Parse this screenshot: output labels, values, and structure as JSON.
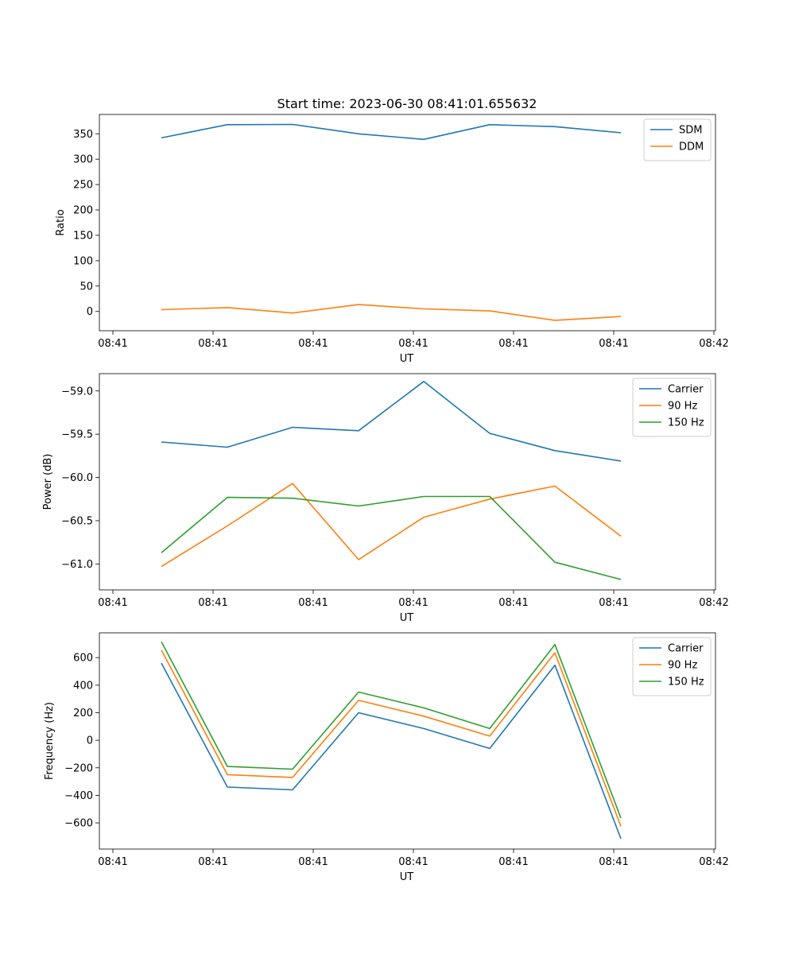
{
  "title": "Start time: 2023-06-30 08:41:01.655632",
  "chart_data": [
    {
      "type": "line",
      "title": "Start time: 2023-06-30 08:41:01.655632",
      "xlabel": "UT",
      "ylabel": "Ratio",
      "x_tick_labels": [
        "08:41",
        "08:41",
        "08:41",
        "08:41",
        "08:41",
        "08:41",
        "08:42"
      ],
      "yticks": [
        0,
        50,
        100,
        150,
        200,
        250,
        300,
        350
      ],
      "ylim": [
        -38,
        388
      ],
      "grid": false,
      "legend_position": "top-right",
      "series": [
        {
          "name": "SDM",
          "color": "#1f77b4",
          "values": [
            342,
            368,
            368.5,
            350,
            339,
            368,
            364,
            352
          ]
        },
        {
          "name": "DDM",
          "color": "#ff7f0e",
          "values": [
            3.5,
            7.5,
            -3,
            13.5,
            5,
            1,
            -17.5,
            -10
          ]
        }
      ]
    },
    {
      "type": "line",
      "title": "",
      "xlabel": "UT",
      "ylabel": "Power (dB)",
      "x_tick_labels": [
        "08:41",
        "08:41",
        "08:41",
        "08:41",
        "08:41",
        "08:41",
        "08:42"
      ],
      "yticks": [
        -61.0,
        -60.5,
        -60.0,
        -59.5,
        -59.0
      ],
      "ytick_labels": [
        "−61.0",
        "−60.5",
        "−60.0",
        "−59.5",
        "−59.0"
      ],
      "ylim": [
        -61.3,
        -58.8
      ],
      "grid": false,
      "legend_position": "top-right",
      "series": [
        {
          "name": "Carrier",
          "color": "#1f77b4",
          "values": [
            -59.59,
            -59.65,
            -59.42,
            -59.46,
            -58.89,
            -59.49,
            -59.69,
            -59.81
          ]
        },
        {
          "name": "90 Hz",
          "color": "#ff7f0e",
          "values": [
            -61.03,
            -60.56,
            -60.07,
            -60.95,
            -60.46,
            -60.25,
            -60.1,
            -60.68
          ]
        },
        {
          "name": "150 Hz",
          "color": "#2ca02c",
          "values": [
            -60.87,
            -60.23,
            -60.24,
            -60.33,
            -60.22,
            -60.22,
            -60.98,
            -61.18
          ]
        }
      ]
    },
    {
      "type": "line",
      "title": "",
      "xlabel": "UT",
      "ylabel": "Frequency (Hz)",
      "x_tick_labels": [
        "08:41",
        "08:41",
        "08:41",
        "08:41",
        "08:41",
        "08:41",
        "08:42"
      ],
      "yticks": [
        -600,
        -400,
        -200,
        0,
        200,
        400,
        600
      ],
      "ytick_labels": [
        "−600",
        "−400",
        "−200",
        "0",
        "200",
        "400",
        "600"
      ],
      "ylim": [
        -790,
        780
      ],
      "grid": false,
      "legend_position": "top-right",
      "series": [
        {
          "name": "Carrier",
          "color": "#1f77b4",
          "values": [
            560,
            -340,
            -360,
            200,
            85,
            -60,
            545,
            -715
          ]
        },
        {
          "name": "90 Hz",
          "color": "#ff7f0e",
          "values": [
            655,
            -250,
            -270,
            290,
            175,
            30,
            635,
            -625
          ]
        },
        {
          "name": "150 Hz",
          "color": "#2ca02c",
          "values": [
            715,
            -190,
            -210,
            350,
            235,
            85,
            695,
            -565
          ]
        }
      ]
    }
  ]
}
